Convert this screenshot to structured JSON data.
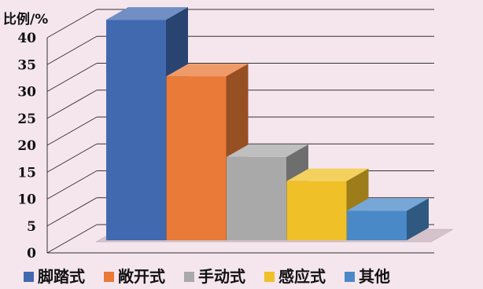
{
  "chart_data": {
    "type": "bar",
    "ylabel": "比例/%",
    "ylim": [
      0,
      40
    ],
    "yticks": [
      0,
      5,
      10,
      15,
      20,
      25,
      30,
      35,
      40
    ],
    "categories": [
      "脚踏式",
      "敞开式",
      "手动式",
      "感应式",
      "其他"
    ],
    "values": [
      41,
      30.5,
      15.5,
      11,
      5.5
    ],
    "colors": [
      "#4169b0",
      "#e97a37",
      "#a9a9a9",
      "#f0c028",
      "#4a89c8"
    ],
    "legend_position": "bottom",
    "grid": true,
    "style": "3d"
  }
}
